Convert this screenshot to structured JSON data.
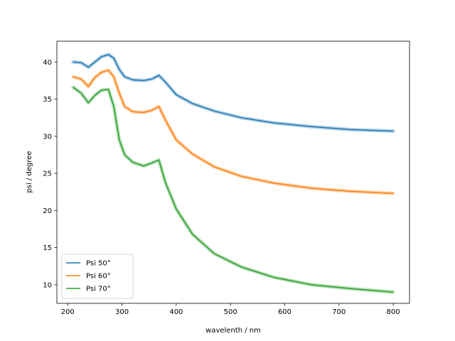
{
  "chart_data": {
    "type": "line",
    "title": "",
    "xlabel": "wavelenth / nm",
    "ylabel": "psi / degree",
    "xlim": [
      180,
      830
    ],
    "ylim": [
      7.5,
      42.8
    ],
    "xticks": [
      200,
      300,
      400,
      500,
      600,
      700,
      800
    ],
    "yticks": [
      10,
      15,
      20,
      25,
      30,
      35,
      40
    ],
    "grid": false,
    "legend_position": "lower-left",
    "series": [
      {
        "name": "Psi 50°",
        "color": "#1f77b4",
        "x": [
          210,
          225,
          238,
          250,
          262,
          275,
          285,
          295,
          305,
          320,
          340,
          355,
          368,
          380,
          400,
          430,
          470,
          520,
          580,
          650,
          720,
          800
        ],
        "y": [
          40.0,
          39.9,
          39.3,
          40.0,
          40.7,
          41.0,
          40.5,
          39.0,
          38.0,
          37.6,
          37.5,
          37.7,
          38.2,
          37.3,
          35.6,
          34.4,
          33.4,
          32.5,
          31.8,
          31.3,
          30.9,
          30.7
        ]
      },
      {
        "name": "Psi 60°",
        "color": "#ff7f0e",
        "x": [
          210,
          225,
          238,
          250,
          262,
          275,
          285,
          295,
          305,
          320,
          340,
          355,
          368,
          380,
          400,
          430,
          470,
          520,
          580,
          650,
          720,
          800
        ],
        "y": [
          38.0,
          37.7,
          36.7,
          37.9,
          38.6,
          38.9,
          38.0,
          35.8,
          34.0,
          33.3,
          33.2,
          33.5,
          34.0,
          32.2,
          29.5,
          27.6,
          25.9,
          24.6,
          23.7,
          23.0,
          22.6,
          22.3
        ]
      },
      {
        "name": "Psi 70°",
        "color": "#2ca02c",
        "x": [
          210,
          225,
          238,
          250,
          262,
          275,
          285,
          295,
          305,
          320,
          340,
          355,
          368,
          380,
          400,
          430,
          470,
          520,
          580,
          650,
          720,
          800
        ],
        "y": [
          36.6,
          35.8,
          34.5,
          35.5,
          36.2,
          36.3,
          34.0,
          29.5,
          27.5,
          26.5,
          26.0,
          26.4,
          26.8,
          23.8,
          20.2,
          16.8,
          14.2,
          12.4,
          11.0,
          10.0,
          9.5,
          9.0
        ]
      }
    ]
  }
}
